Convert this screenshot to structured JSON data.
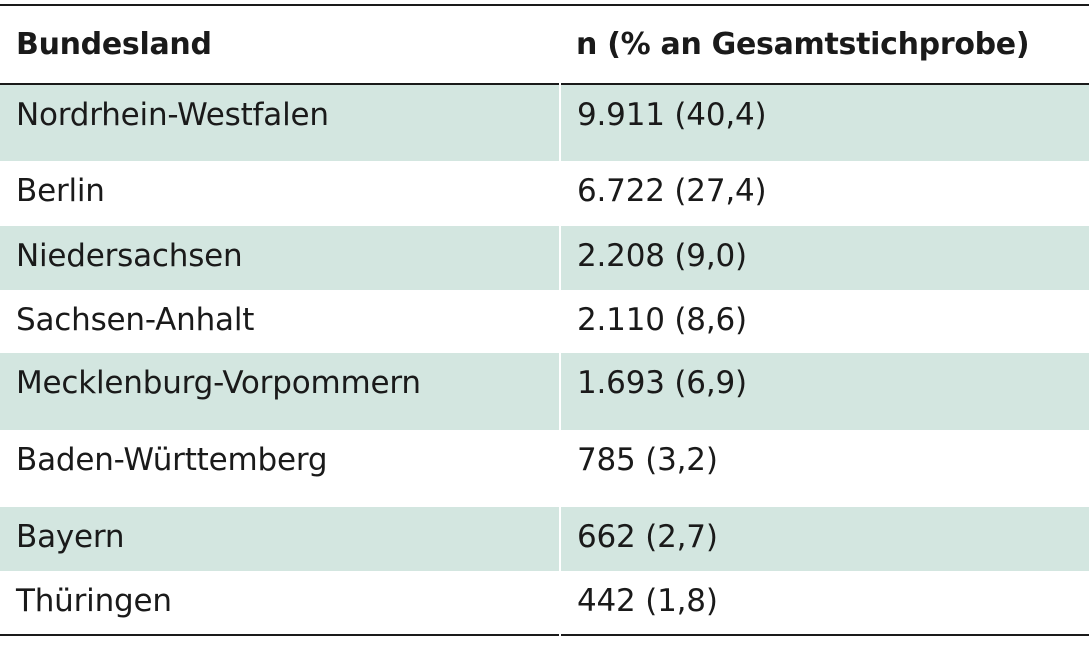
{
  "table": {
    "headers": {
      "bundesland": "Bundesland",
      "n": "n (% an Gesamtstichprobe)"
    },
    "rows": [
      {
        "bundesland": "Nordrhein-Westfalen",
        "n": "9.911 (40,4)",
        "shaded": true
      },
      {
        "bundesland": "Berlin",
        "n": "6.722 (27,4)",
        "shaded": false
      },
      {
        "bundesland": "Niedersachsen",
        "n": "2.208 (9,0)",
        "shaded": true
      },
      {
        "bundesland": "Sachsen-Anhalt",
        "n": "2.110 (8,6)",
        "shaded": false
      },
      {
        "bundesland": "Mecklenburg-Vorpommern",
        "n": "1.693 (6,9)",
        "shaded": true
      },
      {
        "bundesland": "Baden-Württemberg",
        "n": "785 (3,2)",
        "shaded": false
      },
      {
        "bundesland": "Bayern",
        "n": "662 (2,7)",
        "shaded": true
      },
      {
        "bundesland": "Thüringen",
        "n": "442 (1,8)",
        "shaded": false
      }
    ]
  },
  "colors": {
    "shade": "#d3e6e0",
    "rule": "#1a1a1a"
  }
}
